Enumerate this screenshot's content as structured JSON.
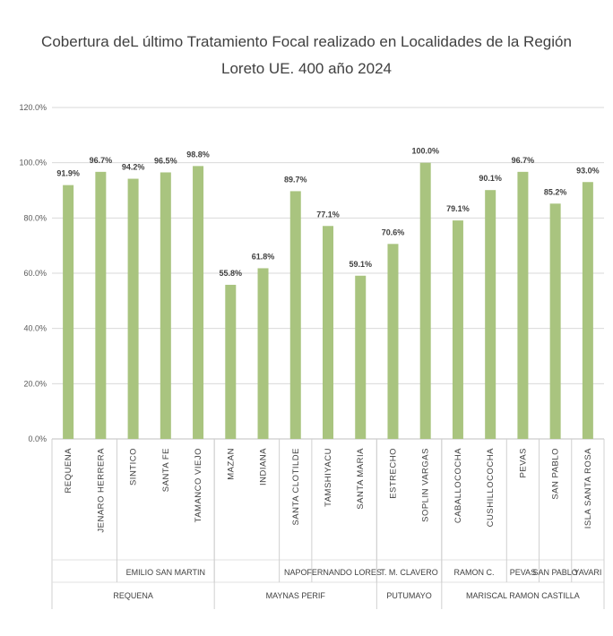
{
  "chart_data": {
    "type": "bar",
    "title_line1": "Cobertura deL último Tratamiento Focal realizado en  Localidades de la Región",
    "title_line2": "Loreto UE. 400 año 2024",
    "categories": [
      "REQUENA",
      "JENARO HERRERA",
      "SINTICO",
      "SANTA FE",
      "TAMANCO VIEJO",
      "MAZAN",
      "INDIANA",
      "SANTA CLOTILDE",
      "TAMSHIYACU",
      "SANTA MARIA",
      "ESTRECHO",
      "SOPLIN VARGAS",
      "CABALLOCOCHA",
      "CUSHILLOCOCHA",
      "PEVAS",
      "SAN PABLO",
      "ISLA SANTA ROSA"
    ],
    "values": [
      91.9,
      96.7,
      94.2,
      96.5,
      98.8,
      55.8,
      61.8,
      89.7,
      77.1,
      59.1,
      70.6,
      100.0,
      79.1,
      90.1,
      96.7,
      85.2,
      93.0
    ],
    "data_labels": [
      "91.9%",
      "96.7%",
      "94.2%",
      "96.5%",
      "98.8%",
      "55.8%",
      "61.8%",
      "89.7%",
      "77.1%",
      "59.1%",
      "70.6%",
      "100.0%",
      "79.1%",
      "90.1%",
      "96.7%",
      "85.2%",
      "93.0%"
    ],
    "ylim": [
      0,
      120
    ],
    "yticks": [
      "0.0%",
      "20.0%",
      "40.0%",
      "60.0%",
      "80.0%",
      "100.0%",
      "120.0%"
    ],
    "grid": true,
    "bar_color": "#a9c47f",
    "districts": [
      {
        "label": "",
        "span": 2
      },
      {
        "label": "EMILIO SAN MARTIN",
        "span": 3
      },
      {
        "label": "",
        "span": 2
      },
      {
        "label": "NAPO",
        "span": 1
      },
      {
        "label": "FERNANDO LORES",
        "span": 2
      },
      {
        "label": "T. M. CLAVERO",
        "span": 2
      },
      {
        "label": "RAMON C.",
        "span": 2
      },
      {
        "label": "PEVAS",
        "span": 1
      },
      {
        "label": "SAN PABLO",
        "span": 1
      },
      {
        "label": "YAVARI",
        "span": 1
      }
    ],
    "provinces": [
      {
        "label": "REQUENA",
        "span": 5
      },
      {
        "label": "MAYNAS PERIF",
        "span": 5
      },
      {
        "label": "PUTUMAYO",
        "span": 2
      },
      {
        "label": "MARISCAL RAMON CASTILLA",
        "span": 5
      }
    ]
  }
}
